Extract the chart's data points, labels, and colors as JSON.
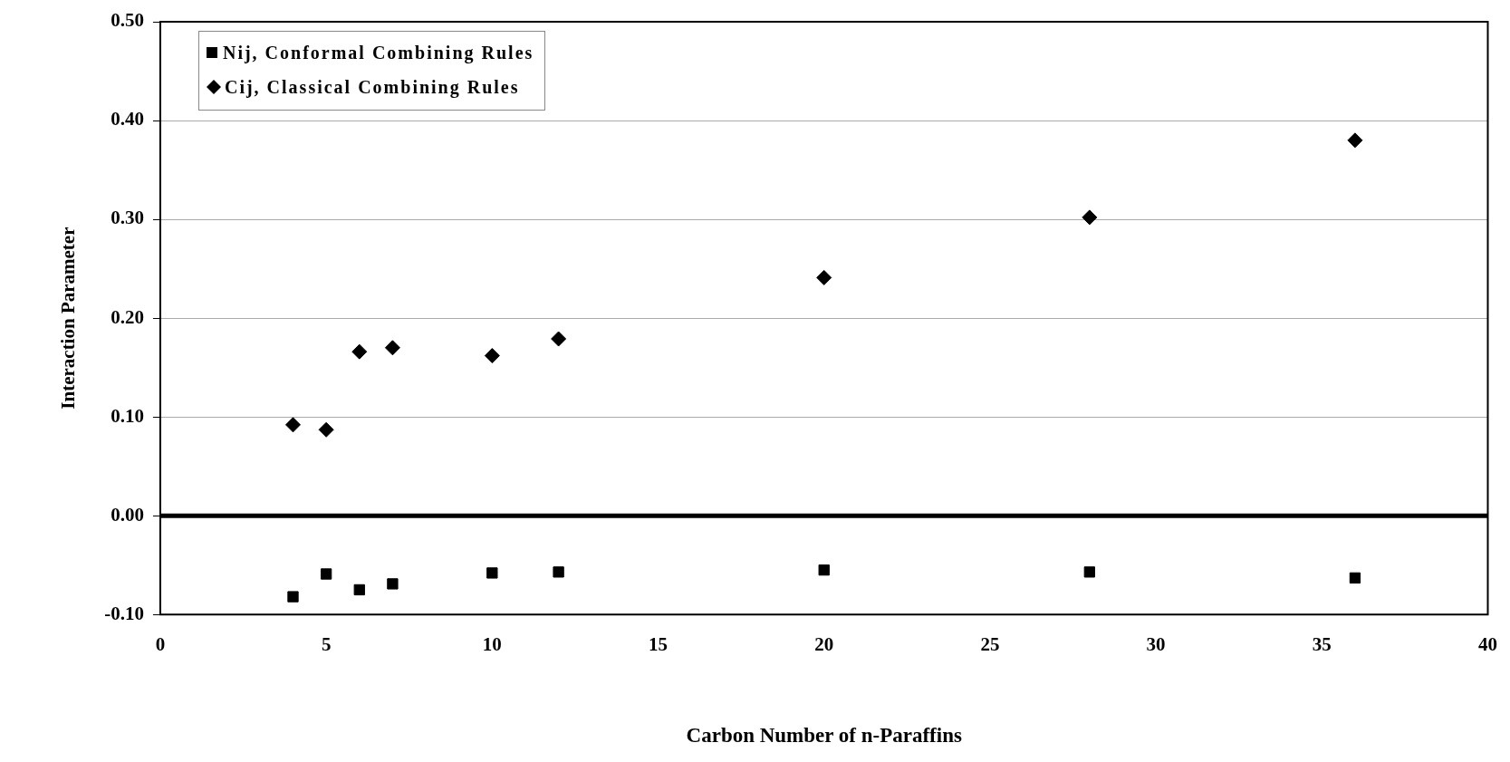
{
  "chart_data": {
    "type": "scatter",
    "xlabel": "Carbon Number of n-Paraffins",
    "ylabel": "Interaction Parameter",
    "series": [
      {
        "name": "Nij, Conformal Combining Rules",
        "color": "#000000",
        "marker": "square",
        "x": [
          4,
          5,
          6,
          7,
          10,
          12,
          20,
          28,
          36
        ],
        "values": [
          -0.082,
          -0.059,
          -0.075,
          -0.069,
          -0.058,
          -0.057,
          -0.055,
          -0.057,
          -0.063
        ]
      },
      {
        "name": "Cij, Classical Combining Rules",
        "color": "#000000",
        "marker": "diamond",
        "x": [
          4,
          5,
          6,
          7,
          10,
          12,
          20,
          28,
          36
        ],
        "values": [
          0.092,
          0.087,
          0.166,
          0.17,
          0.162,
          0.179,
          0.241,
          0.302,
          0.38
        ]
      }
    ],
    "xlim": [
      0,
      40
    ],
    "xticks": [
      0,
      5,
      10,
      15,
      20,
      25,
      30,
      35,
      40
    ],
    "ylim": [
      -0.1,
      0.5
    ],
    "yticks": [
      {
        "value": -0.1,
        "label": "-0.10"
      },
      {
        "value": 0,
        "label": "0.00"
      },
      {
        "value": 0.1,
        "label": "0.10"
      },
      {
        "value": 0.2,
        "label": "0.20"
      },
      {
        "value": 0.3,
        "label": "0.30"
      },
      {
        "value": 0.4,
        "label": "0.40"
      },
      {
        "value": 0.5,
        "label": "0.50"
      }
    ],
    "ref_lines": [
      {
        "axis": "y",
        "value": 0,
        "color": "#000000"
      }
    ],
    "grid": "y",
    "legend": "top left"
  }
}
